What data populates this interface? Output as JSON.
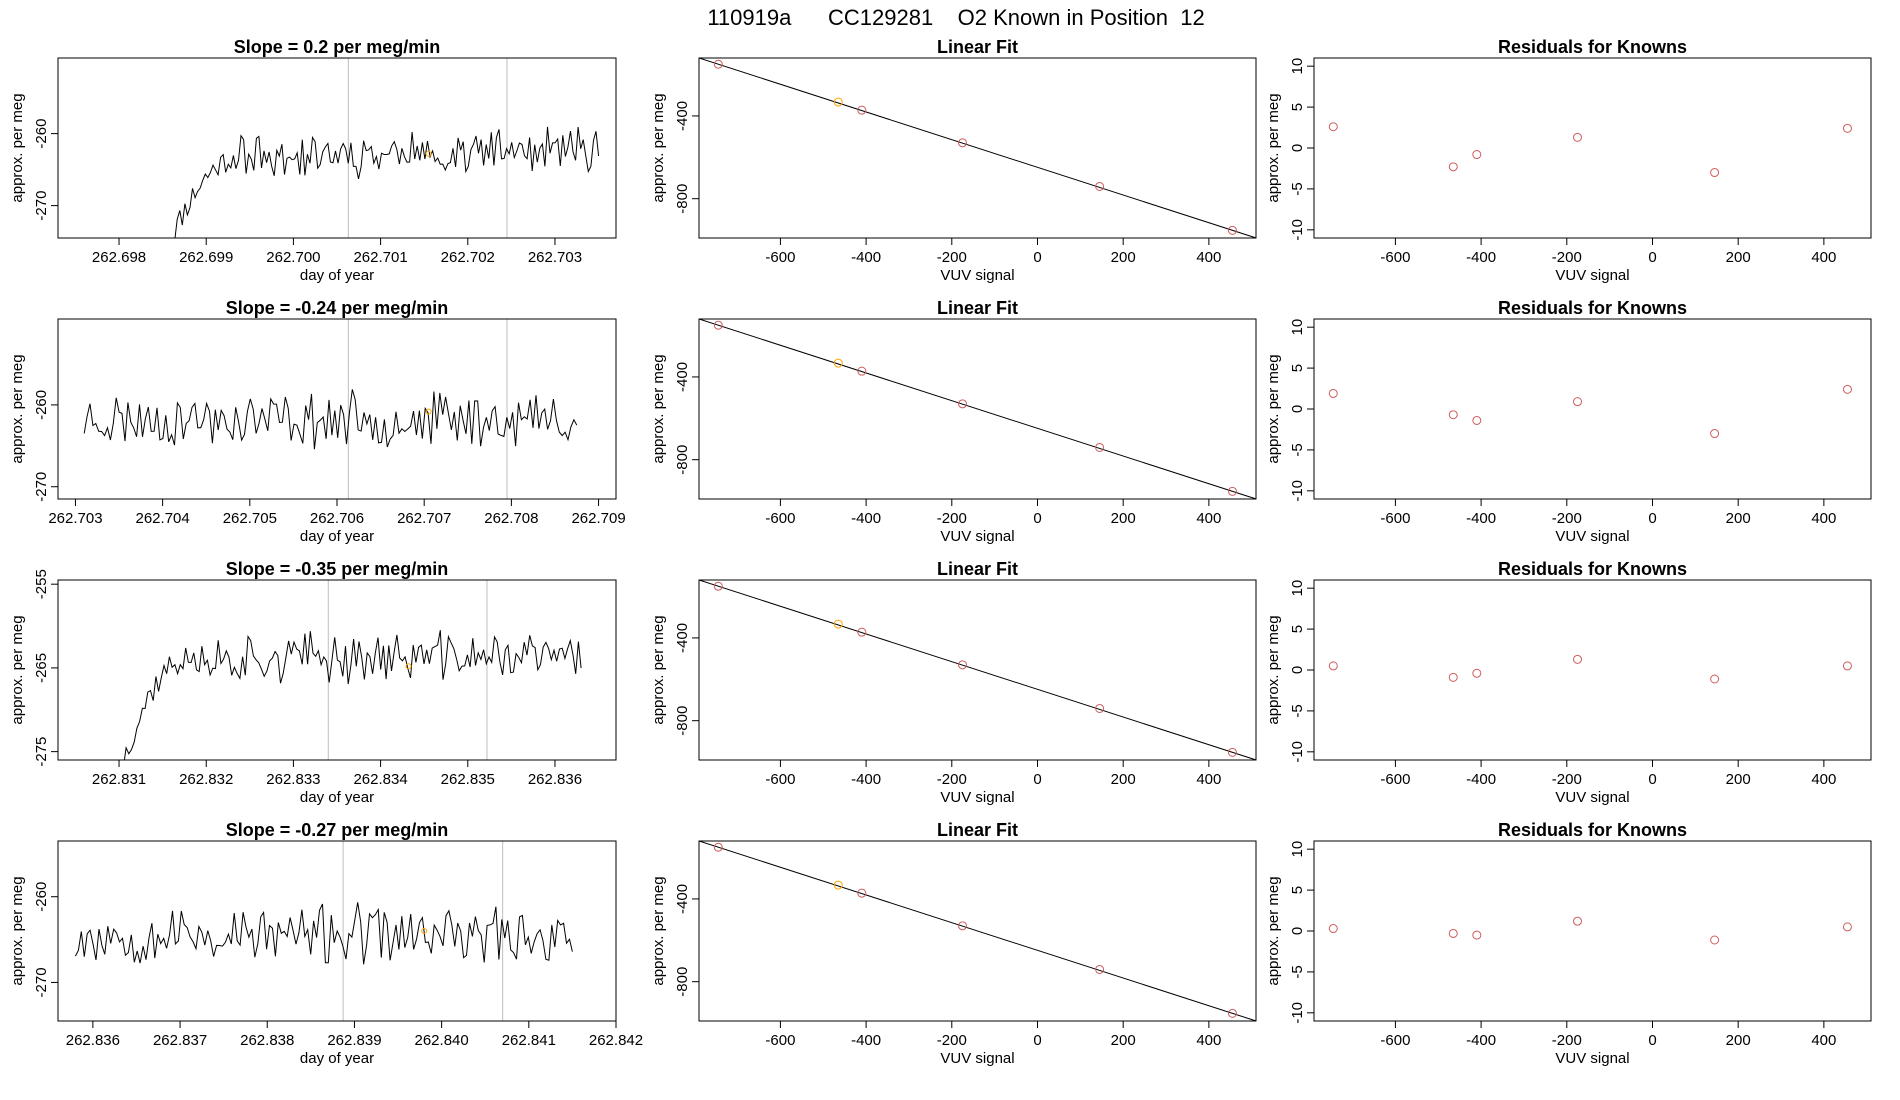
{
  "figure_title": "110919a      CC129281    O2 Known in Position  12",
  "colors": {
    "line": "#000000",
    "grid": "#bebebe",
    "highlight": "#ffa500",
    "residual": "#cd5c5c"
  },
  "chart_data": [
    {
      "type": "line",
      "row": 1,
      "title": "Slope =  0.2  per meg/min",
      "xlabel": "day of year",
      "ylabel": "approx. per meg",
      "xlim": [
        262.6973,
        262.7037
      ],
      "ylim": [
        -274.5,
        -249.5
      ],
      "xticks": [
        "262.698",
        "262.699",
        "262.700",
        "262.701",
        "262.702",
        "262.703"
      ],
      "yticks": [
        "-260",
        "-270"
      ],
      "series": [
        {
          "name": "signal",
          "x_start": 262.69855,
          "x_end": 262.7035,
          "start_value": -276,
          "rise_end": 0.17,
          "level": -263.2,
          "drift": 0.8,
          "noise": 2.4,
          "seed": 11
        }
      ],
      "vlines": [
        262.70063,
        262.70245
      ],
      "highlight_point": {
        "x": 262.70155,
        "y": -262.8
      }
    },
    {
      "type": "line",
      "row": 2,
      "title": "Slope =  -0.24  per meg/min",
      "xlabel": "day of year",
      "ylabel": "approx. per meg",
      "xlim": [
        262.7028,
        262.7092
      ],
      "ylim": [
        -271.5,
        -249.5
      ],
      "xticks": [
        "262.703",
        "262.704",
        "262.705",
        "262.706",
        "262.707",
        "262.708",
        "262.709"
      ],
      "yticks": [
        "-260",
        "-270"
      ],
      "series": [
        {
          "name": "signal",
          "x_start": 262.7031,
          "x_end": 262.70875,
          "start_value": -262.5,
          "rise_end": 0.0,
          "level": -261.8,
          "drift": 0.0,
          "noise": 2.6,
          "seed": 23
        }
      ],
      "vlines": [
        262.70613,
        262.70795
      ],
      "highlight_point": {
        "x": 262.70705,
        "y": -260.8
      }
    },
    {
      "type": "line",
      "row": 3,
      "title": "Slope =  -0.35  per meg/min",
      "xlabel": "day of year",
      "ylabel": "approx. per meg",
      "xlim": [
        262.8303,
        262.8367
      ],
      "ylim": [
        -276,
        -254.5
      ],
      "xticks": [
        "262.831",
        "262.832",
        "262.833",
        "262.834",
        "262.835",
        "262.836"
      ],
      "yticks": [
        "-255",
        "-265",
        "-275"
      ],
      "series": [
        {
          "name": "signal",
          "x_start": 262.83105,
          "x_end": 262.8363,
          "start_value": -276,
          "rise_end": 0.14,
          "level": -264.0,
          "drift": 0.5,
          "noise": 2.3,
          "seed": 37
        }
      ],
      "vlines": [
        262.8334,
        262.83522
      ],
      "highlight_point": {
        "x": 262.83432,
        "y": -264.8
      }
    },
    {
      "type": "line",
      "row": 4,
      "title": "Slope =  -0.27  per meg/min",
      "xlabel": "day of year",
      "ylabel": "approx. per meg",
      "xlim": [
        262.8356,
        262.842
      ],
      "ylim": [
        -274.5,
        -253.5
      ],
      "xticks": [
        "262.836",
        "262.837",
        "262.838",
        "262.839",
        "262.840",
        "262.841",
        "262.842"
      ],
      "yticks": [
        "-260",
        "-270"
      ],
      "series": [
        {
          "name": "signal",
          "x_start": 262.8358,
          "x_end": 262.8415,
          "start_value": -262.5,
          "rise_end": 0.0,
          "level": -264.5,
          "drift": 0.0,
          "noise": 2.7,
          "seed": 53
        }
      ],
      "vlines": [
        262.83887,
        262.8407
      ],
      "highlight_point": {
        "x": 262.8398,
        "y": -264.0
      }
    },
    {
      "type": "scatter",
      "row": 1,
      "title": "Linear Fit",
      "xlabel": "VUV signal",
      "ylabel": "approx. per meg",
      "xlim": [
        -790,
        510
      ],
      "ylim": [
        -990,
        -120
      ],
      "xticks": [
        -600,
        -400,
        -200,
        0,
        200,
        400
      ],
      "yticks": [
        -400,
        -800
      ],
      "points": [
        {
          "x": -745,
          "y": -150
        },
        {
          "x": -465,
          "y": -333,
          "color": "orange"
        },
        {
          "x": -410,
          "y": -372
        },
        {
          "x": -175,
          "y": -530
        },
        {
          "x": 145,
          "y": -741
        },
        {
          "x": 455,
          "y": -953
        }
      ],
      "fit_line": {
        "x": [
          -745,
          455
        ],
        "y": [
          -150,
          -953
        ]
      }
    },
    {
      "type": "scatter",
      "row": 2,
      "title": "Linear Fit",
      "xlabel": "VUV signal",
      "ylabel": "approx. per meg",
      "xlim": [
        -790,
        510
      ],
      "ylim": [
        -990,
        -120
      ],
      "xticks": [
        -600,
        -400,
        -200,
        0,
        200,
        400
      ],
      "yticks": [
        -400,
        -800
      ],
      "points": [
        {
          "x": -745,
          "y": -150
        },
        {
          "x": -465,
          "y": -333,
          "color": "orange"
        },
        {
          "x": -410,
          "y": -372
        },
        {
          "x": -175,
          "y": -530
        },
        {
          "x": 145,
          "y": -741
        },
        {
          "x": 455,
          "y": -953
        }
      ],
      "fit_line": {
        "x": [
          -745,
          455
        ],
        "y": [
          -150,
          -953
        ]
      }
    },
    {
      "type": "scatter",
      "row": 3,
      "title": "Linear Fit",
      "xlabel": "VUV signal",
      "ylabel": "approx. per meg",
      "xlim": [
        -790,
        510
      ],
      "ylim": [
        -990,
        -120
      ],
      "xticks": [
        -600,
        -400,
        -200,
        0,
        200,
        400
      ],
      "yticks": [
        -400,
        -800
      ],
      "points": [
        {
          "x": -745,
          "y": -150
        },
        {
          "x": -465,
          "y": -333,
          "color": "orange"
        },
        {
          "x": -410,
          "y": -372
        },
        {
          "x": -175,
          "y": -530
        },
        {
          "x": 145,
          "y": -741
        },
        {
          "x": 455,
          "y": -953
        }
      ],
      "fit_line": {
        "x": [
          -745,
          455
        ],
        "y": [
          -150,
          -953
        ]
      }
    },
    {
      "type": "scatter",
      "row": 4,
      "title": "Linear Fit",
      "xlabel": "VUV signal",
      "ylabel": "approx. per meg",
      "xlim": [
        -790,
        510
      ],
      "ylim": [
        -990,
        -120
      ],
      "xticks": [
        -600,
        -400,
        -200,
        0,
        200,
        400
      ],
      "yticks": [
        -400,
        -800
      ],
      "points": [
        {
          "x": -745,
          "y": -150
        },
        {
          "x": -465,
          "y": -333,
          "color": "orange"
        },
        {
          "x": -410,
          "y": -372
        },
        {
          "x": -175,
          "y": -530
        },
        {
          "x": 145,
          "y": -741
        },
        {
          "x": 455,
          "y": -953
        }
      ],
      "fit_line": {
        "x": [
          -745,
          455
        ],
        "y": [
          -150,
          -953
        ]
      }
    },
    {
      "type": "scatter",
      "row": 1,
      "title": "Residuals for Knowns",
      "xlabel": "VUV signal",
      "ylabel": "approx. per meg",
      "xlim": [
        -790,
        510
      ],
      "ylim": [
        -11,
        11
      ],
      "xticks": [
        -600,
        -400,
        -200,
        0,
        200,
        400
      ],
      "yticks": [
        10,
        5,
        0,
        -5,
        -10
      ],
      "points": [
        {
          "x": -745,
          "y": 2.6
        },
        {
          "x": -465,
          "y": -2.3
        },
        {
          "x": -410,
          "y": -0.8
        },
        {
          "x": -175,
          "y": 1.3
        },
        {
          "x": 145,
          "y": -3.0
        },
        {
          "x": 455,
          "y": 2.4
        }
      ]
    },
    {
      "type": "scatter",
      "row": 2,
      "title": "Residuals for Knowns",
      "xlabel": "VUV signal",
      "ylabel": "approx. per meg",
      "xlim": [
        -790,
        510
      ],
      "ylim": [
        -11,
        11
      ],
      "xticks": [
        -600,
        -400,
        -200,
        0,
        200,
        400
      ],
      "yticks": [
        10,
        5,
        0,
        -5,
        -10
      ],
      "points": [
        {
          "x": -745,
          "y": 1.9
        },
        {
          "x": -465,
          "y": -0.7
        },
        {
          "x": -410,
          "y": -1.4
        },
        {
          "x": -175,
          "y": 0.9
        },
        {
          "x": 145,
          "y": -3.0
        },
        {
          "x": 455,
          "y": 2.4
        }
      ]
    },
    {
      "type": "scatter",
      "row": 3,
      "title": "Residuals for Knowns",
      "xlabel": "VUV signal",
      "ylabel": "approx. per meg",
      "xlim": [
        -790,
        510
      ],
      "ylim": [
        -11,
        11
      ],
      "xticks": [
        -600,
        -400,
        -200,
        0,
        200,
        400
      ],
      "yticks": [
        10,
        5,
        0,
        -5,
        -10
      ],
      "points": [
        {
          "x": -745,
          "y": 0.5
        },
        {
          "x": -465,
          "y": -0.9
        },
        {
          "x": -410,
          "y": -0.4
        },
        {
          "x": -175,
          "y": 1.3
        },
        {
          "x": 145,
          "y": -1.1
        },
        {
          "x": 455,
          "y": 0.5
        }
      ]
    },
    {
      "type": "scatter",
      "row": 4,
      "title": "Residuals for Knowns",
      "xlabel": "VUV signal",
      "ylabel": "approx. per meg",
      "xlim": [
        -790,
        510
      ],
      "ylim": [
        -11,
        11
      ],
      "xticks": [
        -600,
        -400,
        -200,
        0,
        200,
        400
      ],
      "yticks": [
        10,
        5,
        0,
        -5,
        -10
      ],
      "points": [
        {
          "x": -745,
          "y": 0.3
        },
        {
          "x": -465,
          "y": -0.3
        },
        {
          "x": -410,
          "y": -0.5
        },
        {
          "x": -175,
          "y": 1.2
        },
        {
          "x": 145,
          "y": -1.1
        },
        {
          "x": 455,
          "y": 0.5
        }
      ]
    }
  ]
}
